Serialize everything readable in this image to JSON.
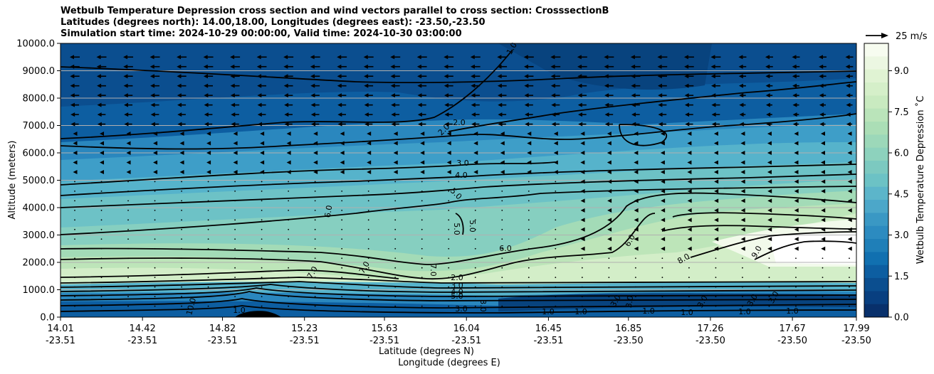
{
  "chart_data": {
    "type": "contour",
    "title": [
      "Wetbulb Temperature Depression cross section and wind vectors parallel to cross section: CrosssectionB",
      "Latitudes (degrees north): 14.00,18.00, Longitudes (degrees east): -23.50,-23.50",
      "Simulation start time: 2024-10-29 00:00:00, Valid time: 2024-10-30 03:00:00"
    ],
    "xlabel_lat": "Latitude (degrees N)",
    "xlabel_lon": "Longitude (degrees E)",
    "ylabel": "Altitude (meters)",
    "ylim": [
      0,
      10000
    ],
    "yticks": [
      "0.0",
      "1000.0",
      "2000.0",
      "3000.0",
      "4000.0",
      "5000.0",
      "6000.0",
      "7000.0",
      "8000.0",
      "9000.0",
      "10000.0"
    ],
    "xticks_lat": [
      "14.01",
      "14.42",
      "14.82",
      "15.23",
      "15.63",
      "16.04",
      "16.45",
      "16.85",
      "17.26",
      "17.67",
      "17.99"
    ],
    "xticks_lon": [
      "-23.51",
      "-23.51",
      "-23.51",
      "-23.51",
      "-23.51",
      "-23.51",
      "-23.51",
      "-23.50",
      "-23.50",
      "-23.50",
      "-23.50"
    ],
    "colorbar_label": "Wetbulb Temperature Depression ˚C",
    "colorbar_ticks": [
      "0.0",
      "1.5",
      "3.0",
      "4.5",
      "6.0",
      "7.5",
      "9.0"
    ],
    "colorbar_range": [
      0,
      10
    ],
    "quiver_key": "25 m/s",
    "contour_levels": [
      1.0,
      2.0,
      3.0,
      4.0,
      5.0,
      6.0,
      7.0,
      8.0,
      9.0,
      10.0
    ],
    "contour_labels": [
      "1.0",
      "2.0",
      "2.0",
      "3.0",
      "4.0",
      "5.0",
      "5.0",
      "5.0",
      "6.0",
      "6.0",
      "6.0",
      "7.0",
      "7.0",
      "7.0",
      "8.0",
      "9.0",
      "10.0",
      "1.0",
      "2.0",
      "3.0",
      "4.0",
      "5.0",
      "3.0",
      "1.0",
      "3.0",
      "1.0",
      "3.0",
      "1.0",
      "3.0",
      "1.0",
      "3.0",
      "1.0",
      "3.0",
      "1.0",
      "3.0"
    ],
    "grid": "horizontal",
    "cmap": [
      "#0b4e8f",
      "#0d5ea1",
      "#1170b0",
      "#2a87be",
      "#3e9ec8",
      "#56b3cb",
      "#6dc2c6",
      "#86cfc0",
      "#a3dbb7",
      "#bde5b9",
      "#d3eec8",
      "#e4f4d9",
      "#f2faeb",
      "#ffffff"
    ]
  }
}
